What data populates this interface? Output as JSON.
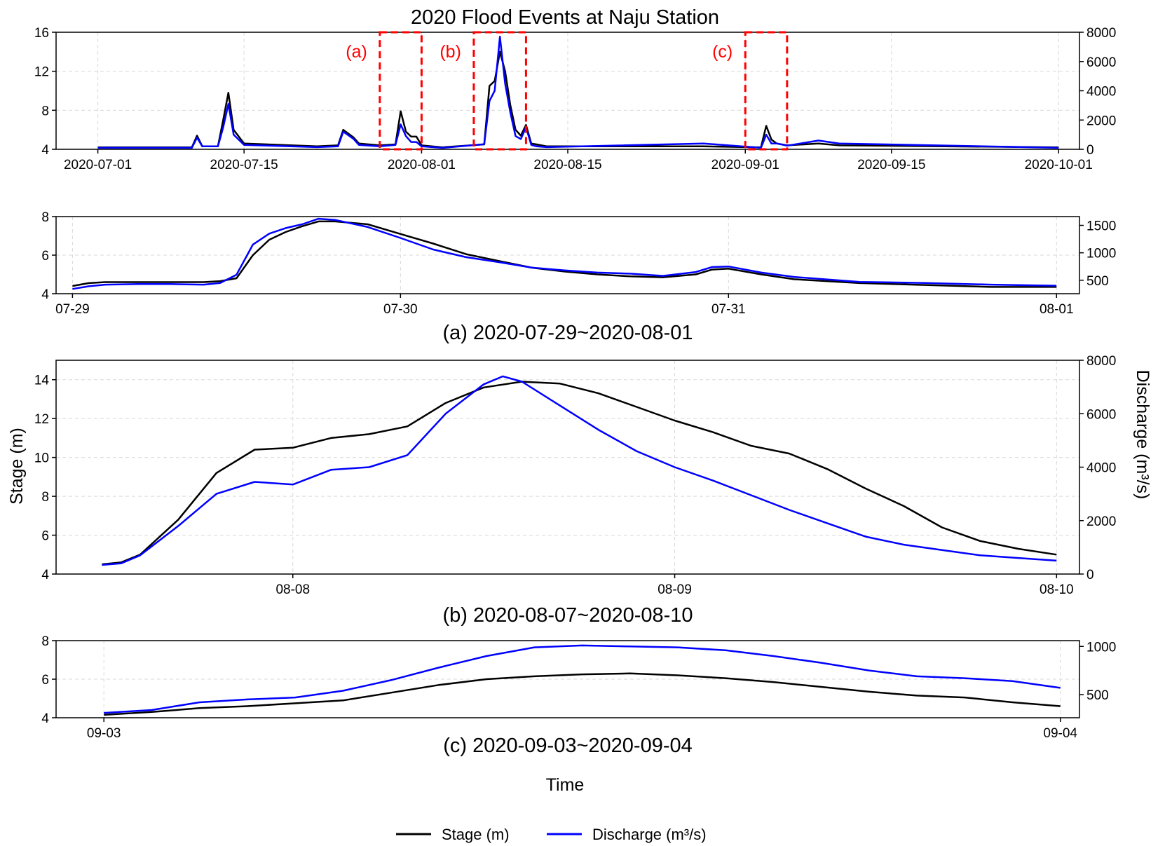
{
  "figure": {
    "title": "2020 Flood Events at Naju Station",
    "x_axis_label": "Time",
    "y_left_label": "Stage (m)",
    "y_right_label": "Discharge (m³/s)",
    "legend": [
      {
        "label": "Stage (m)",
        "color": "#000000"
      },
      {
        "label": "Discharge (m³/s)",
        "color": "#0000ff"
      }
    ]
  },
  "chart_data": [
    {
      "type": "line",
      "title": "2020 Flood Events at Naju Station",
      "x_unit": "date",
      "xlim": [
        "2020-06-27",
        "2020-10-03"
      ],
      "xticks": [
        "2020-07-01",
        "2020-07-15",
        "2020-08-01",
        "2020-08-15",
        "2020-09-01",
        "2020-09-15",
        "2020-10-01"
      ],
      "xtick_labels": [
        "2020-07-01",
        "2020-07-15",
        "2020-08-01",
        "2020-08-15",
        "2020-09-01",
        "2020-09-15",
        "2020-10-01"
      ],
      "ylim_left": [
        4,
        16
      ],
      "yticks_left": [
        4,
        8,
        12,
        16
      ],
      "ylim_right": [
        0,
        8000
      ],
      "yticks_right": [
        0,
        2000,
        4000,
        6000,
        8000
      ],
      "grid": true,
      "series": [
        {
          "name": "Stage (m)",
          "axis": "left",
          "color": "#000000",
          "x": [
            "2020-07-01",
            "2020-07-10",
            "2020-07-10 12:00",
            "2020-07-11",
            "2020-07-12 12:00",
            "2020-07-13",
            "2020-07-13 12:00",
            "2020-07-14",
            "2020-07-15",
            "2020-07-22",
            "2020-07-24",
            "2020-07-24 12:00",
            "2020-07-25 12:00",
            "2020-07-26",
            "2020-07-28",
            "2020-07-29 12:00",
            "2020-07-30",
            "2020-07-30 12:00",
            "2020-07-31",
            "2020-07-31 12:00",
            "2020-08-01",
            "2020-08-03",
            "2020-08-07",
            "2020-08-07 12:00",
            "2020-08-08",
            "2020-08-08 12:00",
            "2020-08-09",
            "2020-08-09 12:00",
            "2020-08-10",
            "2020-08-10 12:00",
            "2020-08-11",
            "2020-08-11 12:00",
            "2020-08-12",
            "2020-08-13",
            "2020-08-28",
            "2020-09-02 12:00",
            "2020-09-03",
            "2020-09-03 12:00",
            "2020-09-04",
            "2020-09-05",
            "2020-09-08",
            "2020-09-10",
            "2020-10-01"
          ],
          "y": [
            4.2,
            4.2,
            5.4,
            4.3,
            4.3,
            7.0,
            9.8,
            6.0,
            4.6,
            4.3,
            4.4,
            6.0,
            5.2,
            4.6,
            4.4,
            4.5,
            7.9,
            5.8,
            5.3,
            5.3,
            4.4,
            4.2,
            4.5,
            10.5,
            11.0,
            14.0,
            12.0,
            8.5,
            6.0,
            5.4,
            6.5,
            4.6,
            4.5,
            4.3,
            4.3,
            4.2,
            6.4,
            5.0,
            4.6,
            4.4,
            4.6,
            4.4,
            4.2
          ]
        },
        {
          "name": "Discharge (m³/s)",
          "axis": "right",
          "color": "#0000ff",
          "x": [
            "2020-07-01",
            "2020-07-10",
            "2020-07-10 12:00",
            "2020-07-11",
            "2020-07-12 12:00",
            "2020-07-13",
            "2020-07-13 12:00",
            "2020-07-14",
            "2020-07-15",
            "2020-07-22",
            "2020-07-24",
            "2020-07-24 12:00",
            "2020-07-25 12:00",
            "2020-07-26",
            "2020-07-28",
            "2020-07-29 12:00",
            "2020-07-30",
            "2020-07-30 12:00",
            "2020-07-31",
            "2020-07-31 12:00",
            "2020-08-01",
            "2020-08-03",
            "2020-08-07",
            "2020-08-07 12:00",
            "2020-08-08",
            "2020-08-08 12:00",
            "2020-08-09",
            "2020-08-09 12:00",
            "2020-08-10",
            "2020-08-10 12:00",
            "2020-08-11",
            "2020-08-11 12:00",
            "2020-08-12",
            "2020-08-13",
            "2020-08-28",
            "2020-09-02 12:00",
            "2020-09-03",
            "2020-09-03 12:00",
            "2020-09-04",
            "2020-09-05",
            "2020-09-08",
            "2020-09-10",
            "2020-10-01"
          ],
          "y": [
            100,
            100,
            800,
            200,
            200,
            1500,
            3100,
            1000,
            300,
            150,
            200,
            1200,
            700,
            300,
            200,
            300,
            1700,
            900,
            500,
            500,
            200,
            100,
            350,
            3300,
            4000,
            7700,
            4500,
            2500,
            900,
            700,
            1500,
            300,
            200,
            150,
            400,
            100,
            1000,
            400,
            400,
            250,
            600,
            400,
            100
          ]
        }
      ],
      "annotations": [
        {
          "label": "(a)",
          "x_range": [
            "2020-07-28",
            "2020-08-01"
          ],
          "style": "red dashed box"
        },
        {
          "label": "(b)",
          "x_range": [
            "2020-08-06",
            "2020-08-11"
          ],
          "style": "red dashed box"
        },
        {
          "label": "(c)",
          "x_range": [
            "2020-09-01",
            "2020-09-05"
          ],
          "style": "red dashed box"
        }
      ]
    },
    {
      "type": "line",
      "caption": "(a) 2020-07-29~2020-08-01",
      "x_unit": "day of 2020-07-29",
      "xlim": [
        -0.05,
        3.07
      ],
      "xticks": [
        0,
        1,
        2,
        3
      ],
      "xtick_labels": [
        "07-29",
        "07-30",
        "07-31",
        "08-01"
      ],
      "ylim_left": [
        4,
        8
      ],
      "yticks_left": [
        4,
        6,
        8
      ],
      "ylim_right": [
        255,
        1660
      ],
      "yticks_right": [
        500,
        1000,
        1500
      ],
      "grid": true,
      "series": [
        {
          "name": "Stage (m)",
          "axis": "left",
          "color": "#000000",
          "x": [
            0,
            0.05,
            0.1,
            0.2,
            0.3,
            0.4,
            0.45,
            0.5,
            0.55,
            0.6,
            0.65,
            0.7,
            0.75,
            0.8,
            0.9,
            1.0,
            1.1,
            1.2,
            1.3,
            1.4,
            1.5,
            1.6,
            1.7,
            1.8,
            1.9,
            1.95,
            2.0,
            2.1,
            2.2,
            2.4,
            2.6,
            2.8,
            3.0
          ],
          "y": [
            4.4,
            4.55,
            4.6,
            4.6,
            4.6,
            4.6,
            4.65,
            4.8,
            6.0,
            6.8,
            7.2,
            7.5,
            7.75,
            7.75,
            7.6,
            7.1,
            6.6,
            6.05,
            5.7,
            5.35,
            5.15,
            5.0,
            4.9,
            4.85,
            5.0,
            5.25,
            5.3,
            5.0,
            4.75,
            4.55,
            4.45,
            4.35,
            4.35
          ]
        },
        {
          "name": "Discharge (m³/s)",
          "axis": "right",
          "color": "#0000ff",
          "x": [
            0,
            0.05,
            0.1,
            0.2,
            0.3,
            0.4,
            0.45,
            0.5,
            0.55,
            0.6,
            0.65,
            0.7,
            0.75,
            0.8,
            0.9,
            1.0,
            1.1,
            1.2,
            1.3,
            1.4,
            1.5,
            1.6,
            1.7,
            1.8,
            1.9,
            1.95,
            2.0,
            2.1,
            2.2,
            2.4,
            2.6,
            2.8,
            3.0
          ],
          "y": [
            340,
            390,
            420,
            430,
            430,
            420,
            450,
            600,
            1150,
            1350,
            1450,
            1520,
            1620,
            1600,
            1470,
            1270,
            1060,
            920,
            830,
            730,
            680,
            640,
            620,
            580,
            650,
            740,
            750,
            640,
            560,
            470,
            450,
            420,
            400
          ]
        }
      ]
    },
    {
      "type": "line",
      "caption": "(b) 2020-08-07~2020-08-10",
      "x_unit": "day of 2020-08-08",
      "xlim": [
        -0.62,
        2.06
      ],
      "xticks": [
        0,
        1,
        2
      ],
      "xtick_labels": [
        "08-08",
        "08-09",
        "08-10"
      ],
      "ylim_left": [
        4,
        15
      ],
      "yticks_left": [
        4,
        6,
        8,
        10,
        12,
        14
      ],
      "ylim_right": [
        0,
        8000
      ],
      "yticks_right": [
        0,
        2000,
        4000,
        6000,
        8000
      ],
      "grid": true,
      "series": [
        {
          "name": "Stage (m)",
          "axis": "left",
          "color": "#000000",
          "x": [
            -0.5,
            -0.45,
            -0.4,
            -0.3,
            -0.2,
            -0.1,
            0,
            0.1,
            0.2,
            0.3,
            0.4,
            0.5,
            0.6,
            0.7,
            0.8,
            0.9,
            1.0,
            1.1,
            1.2,
            1.3,
            1.4,
            1.5,
            1.6,
            1.7,
            1.8,
            1.9,
            2.0
          ],
          "y": [
            4.5,
            4.6,
            5.0,
            6.8,
            9.2,
            10.4,
            10.5,
            11.0,
            11.2,
            11.6,
            12.8,
            13.6,
            13.9,
            13.8,
            13.3,
            12.6,
            11.9,
            11.3,
            10.6,
            10.2,
            9.4,
            8.4,
            7.5,
            6.4,
            5.7,
            5.3,
            5.0
          ]
        },
        {
          "name": "Discharge (m³/s)",
          "axis": "right",
          "color": "#0000ff",
          "x": [
            -0.5,
            -0.45,
            -0.4,
            -0.3,
            -0.2,
            -0.1,
            0,
            0.1,
            0.2,
            0.3,
            0.4,
            0.5,
            0.55,
            0.6,
            0.7,
            0.8,
            0.9,
            1.0,
            1.1,
            1.2,
            1.3,
            1.4,
            1.5,
            1.6,
            1.7,
            1.8,
            1.9,
            2.0
          ],
          "y": [
            340,
            400,
            700,
            1800,
            3000,
            3450,
            3350,
            3900,
            4000,
            4450,
            6000,
            7100,
            7400,
            7200,
            6300,
            5400,
            4600,
            4000,
            3500,
            2950,
            2400,
            1900,
            1400,
            1100,
            900,
            700,
            600,
            500
          ]
        }
      ]
    },
    {
      "type": "line",
      "caption": "(c) 2020-09-03~2020-09-04",
      "x_unit": "day of 2020-09-03",
      "xlim": [
        -0.05,
        1.02
      ],
      "xticks": [
        0,
        1
      ],
      "xtick_labels": [
        "09-03",
        "09-04"
      ],
      "ylim_left": [
        4,
        8
      ],
      "yticks_left": [
        4,
        6,
        8
      ],
      "ylim_right": [
        260,
        1060
      ],
      "yticks_right": [
        500,
        1000
      ],
      "grid": true,
      "series": [
        {
          "name": "Stage (m)",
          "axis": "left",
          "color": "#000000",
          "x": [
            0,
            0.05,
            0.1,
            0.15,
            0.2,
            0.25,
            0.3,
            0.35,
            0.4,
            0.45,
            0.5,
            0.55,
            0.6,
            0.65,
            0.7,
            0.75,
            0.8,
            0.85,
            0.9,
            0.95,
            1.0
          ],
          "y": [
            4.15,
            4.3,
            4.5,
            4.6,
            4.75,
            4.9,
            5.3,
            5.7,
            6.0,
            6.15,
            6.25,
            6.3,
            6.2,
            6.05,
            5.85,
            5.6,
            5.35,
            5.15,
            5.05,
            4.8,
            4.6
          ]
        },
        {
          "name": "Discharge (m³/s)",
          "axis": "right",
          "color": "#0000ff",
          "x": [
            0,
            0.05,
            0.1,
            0.15,
            0.2,
            0.25,
            0.3,
            0.35,
            0.4,
            0.45,
            0.5,
            0.55,
            0.6,
            0.65,
            0.7,
            0.75,
            0.8,
            0.85,
            0.9,
            0.95,
            1.0
          ],
          "y": [
            310,
            340,
            420,
            450,
            470,
            540,
            650,
            780,
            900,
            990,
            1010,
            1000,
            990,
            960,
            900,
            830,
            750,
            690,
            670,
            640,
            570
          ]
        }
      ]
    }
  ]
}
